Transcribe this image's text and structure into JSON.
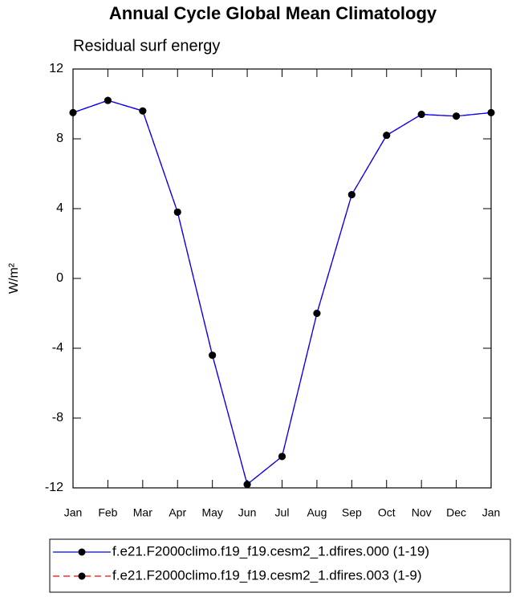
{
  "chart_data": {
    "type": "line",
    "title": "Annual Cycle Global Mean Climatology",
    "subtitle": "Residual surf energy",
    "y_label": "W/m²",
    "categories": [
      "Jan",
      "Feb",
      "Mar",
      "Apr",
      "May",
      "Jun",
      "Jul",
      "Aug",
      "Sep",
      "Oct",
      "Nov",
      "Dec",
      "Jan"
    ],
    "series": [
      {
        "name": "f.e21.F2000climo.f19_f19.cesm2_1.dfires.000 (1-19)",
        "color": "#0000ff",
        "dash": false,
        "values": [
          9.5,
          10.2,
          9.6,
          3.8,
          -4.4,
          -11.8,
          -10.2,
          -2.0,
          4.8,
          8.2,
          9.4,
          9.3,
          9.5
        ]
      },
      {
        "name": "f.e21.F2000climo.f19_f19.cesm2_1.dfires.003 (1-9)",
        "color": "#ff0000",
        "dash": true,
        "values": [
          9.5,
          10.2,
          9.6,
          3.8,
          -4.4,
          -11.8,
          -10.2,
          -2.0,
          4.8,
          8.2,
          9.4,
          9.3,
          9.5
        ]
      }
    ],
    "ylim": [
      -12,
      12
    ],
    "yticks": [
      -12,
      -8,
      -4,
      0,
      4,
      8,
      12
    ],
    "marker_color": "#000000"
  }
}
